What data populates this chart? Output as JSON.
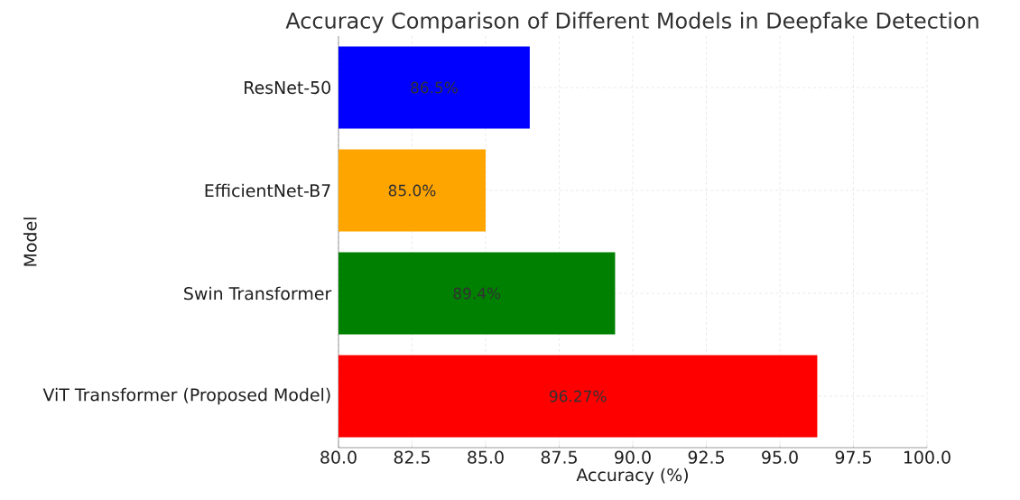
{
  "chart_data": {
    "type": "bar",
    "orientation": "horizontal",
    "title": "Accuracy Comparison of Different Models in Deepfake Detection",
    "xlabel": "Accuracy (%)",
    "ylabel": "Model",
    "categories": [
      "ResNet-50",
      "EfficientNet-B7",
      "Swin Transformer",
      "ViT Transformer (Proposed Model)"
    ],
    "values": [
      86.5,
      85.0,
      89.4,
      96.27
    ],
    "colors": [
      "#0000ff",
      "#ffa500",
      "#008000",
      "#ff0000"
    ],
    "value_labels": [
      "86.5%",
      "85.0%",
      "89.4%",
      "96.27%"
    ],
    "xlim": [
      80,
      100
    ],
    "xticks": [
      {
        "value": 80,
        "label": "80.0"
      },
      {
        "value": 82.5,
        "label": "82.5"
      },
      {
        "value": 85,
        "label": "85.0"
      },
      {
        "value": 87.5,
        "label": "87.5"
      },
      {
        "value": 90,
        "label": "90.0"
      },
      {
        "value": 92.5,
        "label": "92.5"
      },
      {
        "value": 95,
        "label": "95.0"
      },
      {
        "value": 97.5,
        "label": "97.5"
      },
      {
        "value": 100,
        "label": "100.0"
      }
    ],
    "grid": true
  }
}
